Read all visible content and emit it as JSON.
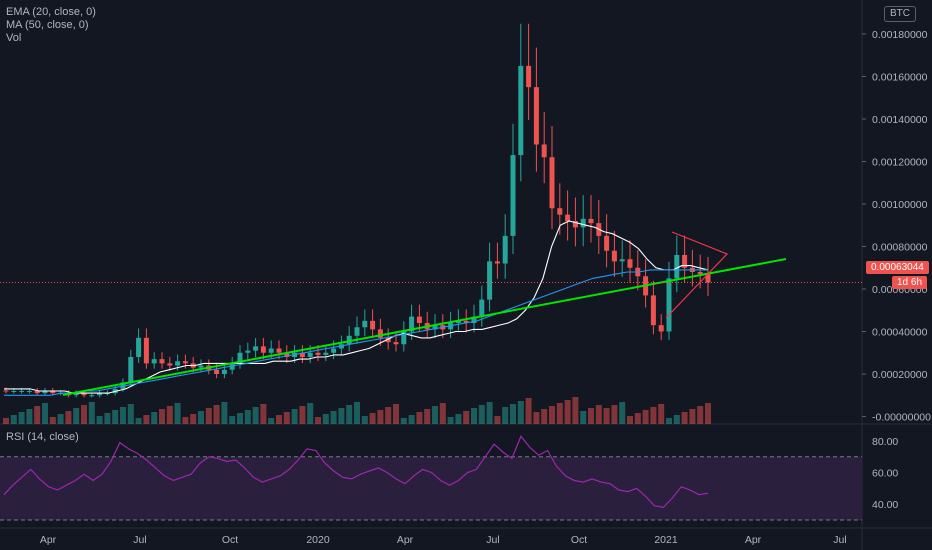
{
  "legend": {
    "ema": "EMA (20, close, 0)",
    "ma": "MA (50, close, 0)",
    "vol": "Vol",
    "rsi": "RSI (14, close)"
  },
  "currency_badge": "BTC",
  "price_badge": {
    "value": "0.00063044",
    "countdown": "1d 6h"
  },
  "colors": {
    "background": "#131722",
    "up": "#26a69a",
    "down": "#ef5350",
    "ema": "#ffffff",
    "ma": "#2196f3",
    "trendline": "#00e600",
    "triangle": "#f23645",
    "rsi": "#9c27b0",
    "rsi_band": "#2a1f3d"
  },
  "chart_data": [
    {
      "type": "candlestick",
      "x_ticks": [
        "Apr",
        "Jul",
        "Oct",
        "2020",
        "Apr",
        "Jul",
        "Oct",
        "2021",
        "Apr",
        "Jul"
      ],
      "y_ticks": [
        "0.00180000",
        "0.00160000",
        "0.00140000",
        "0.00120000",
        "0.00100000",
        "0.00080000",
        "0.00060000",
        "0.00040000",
        "0.00020000",
        "-0.00000000"
      ],
      "ylim": [
        -0.0001,
        0.0019
      ],
      "last_price": 0.00063044,
      "weekly_close": [
        0.00012,
        0.00012,
        0.00012,
        0.00012,
        0.00011,
        0.00012,
        0.00011,
        0.00011,
        0.0001,
        0.00011,
        0.0001,
        0.0001,
        0.00011,
        0.00011,
        0.00013,
        0.00016,
        0.00028,
        0.00037,
        0.00025,
        0.00027,
        0.00025,
        0.00024,
        0.00026,
        0.00025,
        0.00023,
        0.00024,
        0.00022,
        0.0002,
        0.00022,
        0.00025,
        0.0003,
        0.00031,
        0.00033,
        0.0003,
        0.00032,
        0.0003,
        0.00028,
        0.0003,
        0.00028,
        0.0003,
        0.00029,
        0.0003,
        0.00032,
        0.00034,
        0.00038,
        0.00042,
        0.00045,
        0.00041,
        0.00037,
        0.00035,
        0.00034,
        0.0004,
        0.00047,
        0.00044,
        0.00041,
        0.00043,
        0.00041,
        0.00044,
        0.00045,
        0.00044,
        0.00047,
        0.00055,
        0.00073,
        0.00072,
        0.00085,
        0.00123,
        0.00165,
        0.00155,
        0.00128,
        0.00122,
        0.00098,
        0.00095,
        0.00092,
        0.00089,
        0.00093,
        0.00091,
        0.00085,
        0.00078,
        0.00073,
        0.00074,
        0.0007,
        0.00066,
        0.00057,
        0.00043,
        0.0004,
        0.00065,
        0.00076,
        0.0007,
        0.00068,
        0.00067,
        0.00063
      ],
      "ema_20": [
        0.00013,
        0.00013,
        0.00013,
        0.00013,
        0.00012,
        0.00012,
        0.00012,
        0.00012,
        0.00011,
        0.00011,
        0.00011,
        0.00011,
        0.00011,
        0.00012,
        0.00013,
        0.00015,
        0.00017,
        0.00019,
        0.00021,
        0.00022,
        0.00023,
        0.00024,
        0.00024,
        0.00025,
        0.00025,
        0.00025,
        0.00025,
        0.00025,
        0.00025,
        0.00025,
        0.00025,
        0.00026,
        0.00026,
        0.00026,
        0.00027,
        0.00027,
        0.00028,
        0.00028,
        0.00029,
        0.00029,
        0.0003,
        0.00031,
        0.00032,
        0.00034,
        0.00036,
        0.00038,
        0.00039,
        0.00038,
        0.00037,
        0.00037,
        0.00038,
        0.00039,
        0.0004,
        0.0004,
        0.00041,
        0.00041,
        0.00042,
        0.00043,
        0.00044,
        0.00046,
        0.0005,
        0.00056,
        0.00065,
        0.0008,
        0.0009,
        0.00092,
        0.00091,
        0.0009,
        0.00089,
        0.00087,
        0.00086,
        0.00084,
        0.00082,
        0.00079,
        0.00074,
        0.0007,
        0.00069,
        0.00069,
        0.00071,
        0.00071,
        0.0007,
        0.00069
      ],
      "ma_50": [
        0.0001,
        0.0001,
        0.0001,
        0.0001,
        0.0001,
        0.00011,
        0.00011,
        0.00012,
        0.00012,
        0.00013,
        0.00014,
        0.00015,
        0.00016,
        0.00017,
        0.00018,
        0.00019,
        0.0002,
        0.00021,
        0.00022,
        0.00023,
        0.00024,
        0.00025,
        0.00026,
        0.00027,
        0.00028,
        0.00029,
        0.0003,
        0.00031,
        0.00032,
        0.00033,
        0.00034,
        0.00035,
        0.00036,
        0.00037,
        0.00038,
        0.00039,
        0.0004,
        0.00041,
        0.00042,
        0.00043,
        0.00044,
        0.00045,
        0.00047,
        0.00049,
        0.00051,
        0.00053,
        0.00055,
        0.00057,
        0.00059,
        0.00061,
        0.00063,
        0.00065,
        0.00066,
        0.00067,
        0.00068,
        0.00068,
        0.00069,
        0.00069,
        0.00069,
        0.00069,
        0.00069,
        0.00069
      ],
      "rsi_ticks": [
        "80.00",
        "60.00",
        "40.00"
      ],
      "rsi_levels": [
        70,
        30
      ],
      "rsi_values": [
        46,
        52,
        57,
        62,
        56,
        51,
        49,
        52,
        55,
        59,
        55,
        59,
        67,
        79,
        75,
        72,
        68,
        63,
        58,
        55,
        57,
        59,
        66,
        70,
        69,
        67,
        68,
        63,
        57,
        54,
        56,
        58,
        62,
        68,
        75,
        74,
        66,
        61,
        57,
        56,
        59,
        61,
        63,
        60,
        56,
        53,
        58,
        62,
        60,
        55,
        52,
        55,
        60,
        62,
        70,
        78,
        73,
        69,
        83,
        76,
        71,
        74,
        64,
        58,
        55,
        54,
        56,
        54,
        53,
        49,
        48,
        50,
        45,
        39,
        38,
        44,
        51,
        49,
        46,
        47
      ]
    }
  ]
}
